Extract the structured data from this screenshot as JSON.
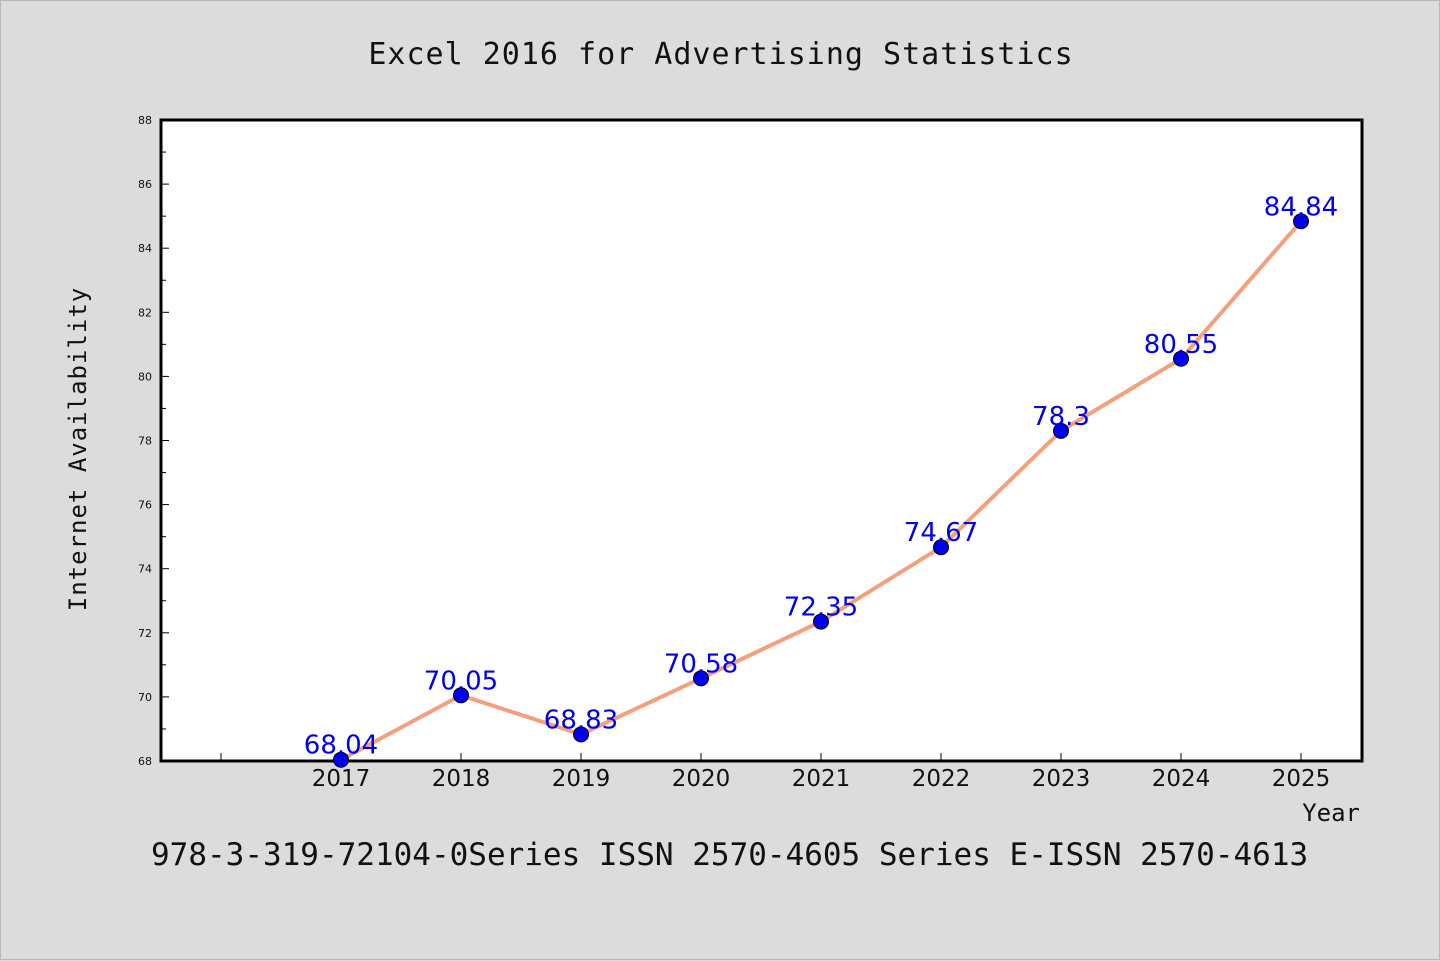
{
  "chart_data": {
    "type": "line",
    "title": "Excel 2016 for Advertising Statistics",
    "xlabel": "Year",
    "ylabel": "Internet Availability",
    "x": [
      "2017",
      "2018",
      "2019",
      "2020",
      "2021",
      "2022",
      "2023",
      "2024",
      "2025"
    ],
    "series": [
      {
        "values": [
          68.04,
          70.05,
          68.83,
          70.58,
          72.35,
          74.67,
          78.3,
          80.55,
          84.84
        ],
        "data_labels": [
          "68.04",
          "70.05",
          "68.83",
          "70.58",
          "72.35",
          "74.67",
          "78.3",
          "80.55",
          "84.84"
        ]
      }
    ],
    "ylim": [
      68,
      88
    ],
    "y_ticks": [
      68,
      70,
      72,
      74,
      76,
      78,
      80,
      82,
      84,
      86,
      88
    ],
    "grid": false,
    "colors": {
      "line": "#f4a07c",
      "marker": "#0000ee",
      "data_label": "#0000ee",
      "background": "#dcdcdc",
      "plot_background": "#ffffff"
    }
  },
  "footnote": "978-3-319-72104-0Series ISSN 2570-4605 Series E-ISSN 2570-4613"
}
